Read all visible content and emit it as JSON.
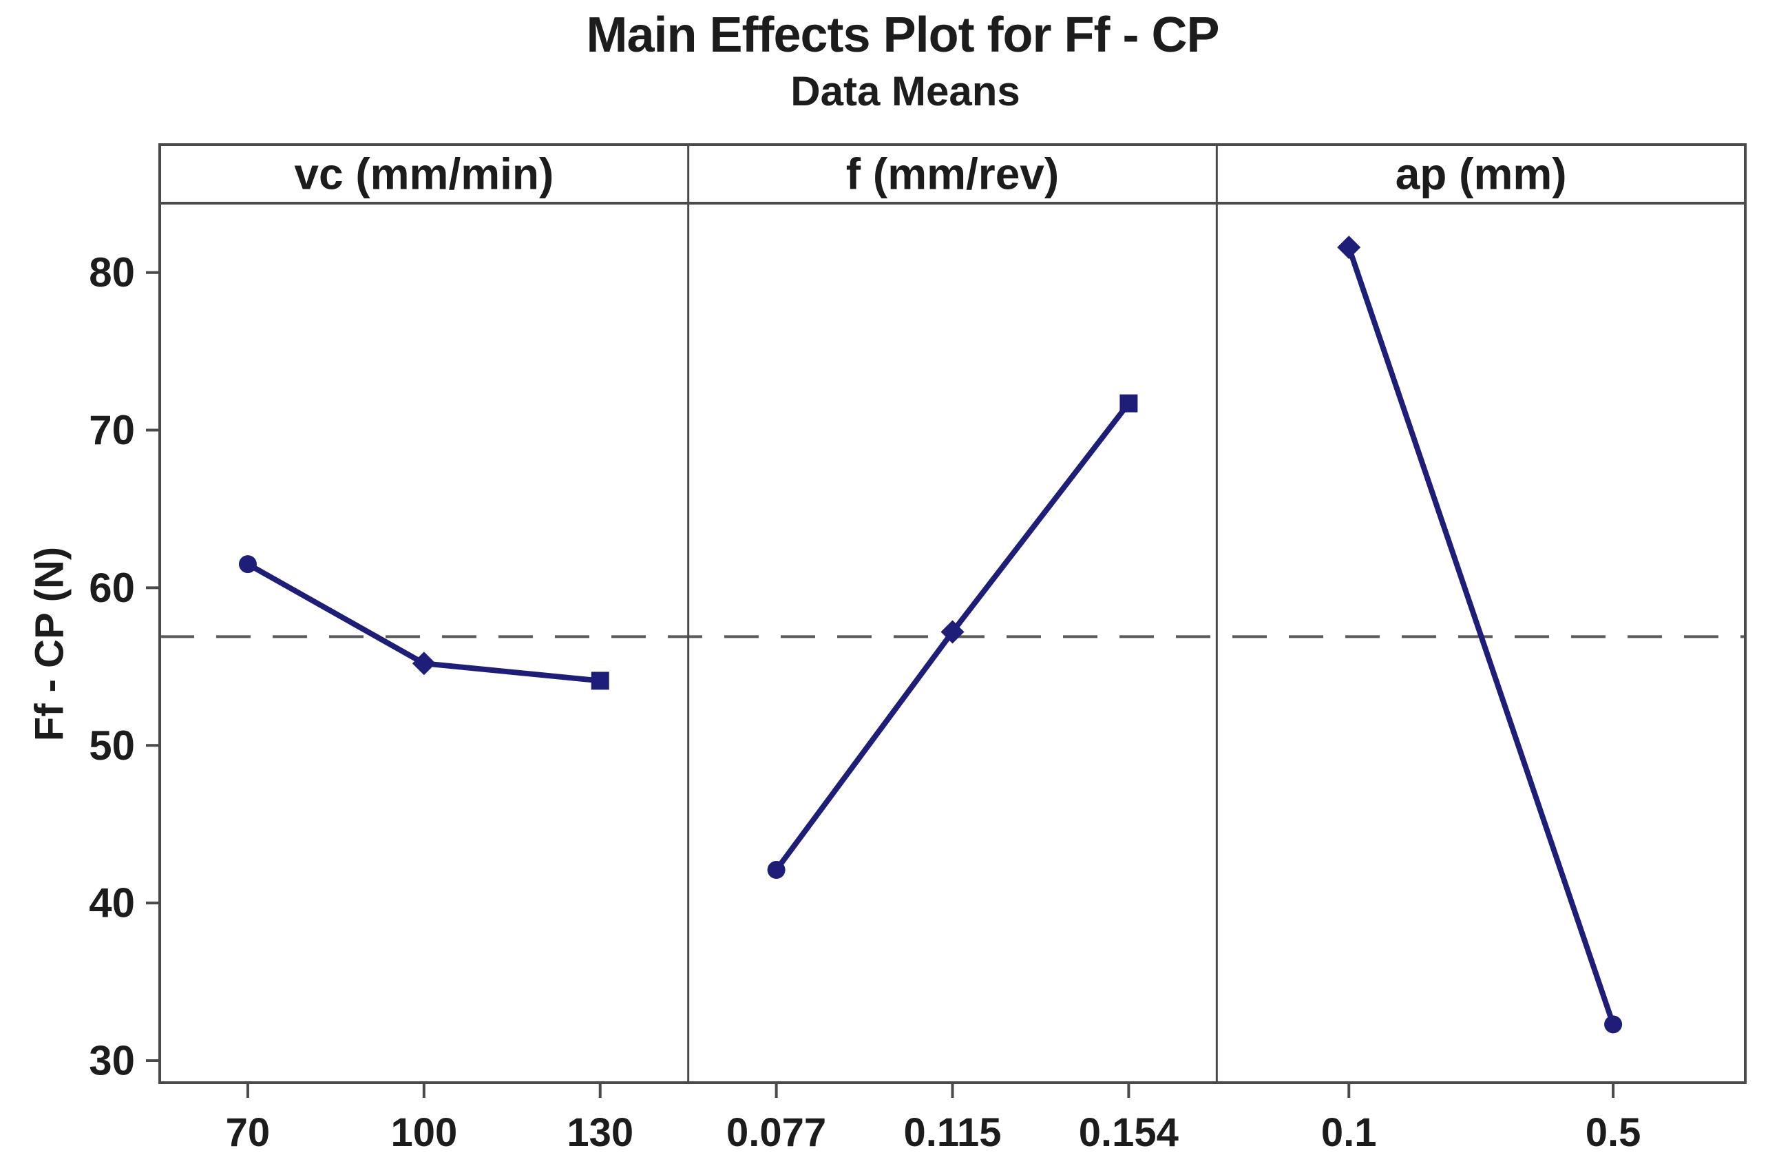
{
  "page": {
    "background": "#ffffff"
  },
  "chart_data": {
    "type": "line",
    "title": "Main Effects Plot for Ff - CP",
    "subtitle": "Data Means",
    "ylabel": "Ff - CP (N)",
    "ylim": [
      28.6,
      84.4
    ],
    "yticks": [
      30,
      40,
      50,
      60,
      70,
      80
    ],
    "grand_mean": 56.9,
    "grid": false,
    "legend": "none",
    "panels": [
      {
        "label": "vc (mm/min)",
        "categories": [
          "70",
          "100",
          "130"
        ],
        "values": [
          61.5,
          55.2,
          54.1
        ]
      },
      {
        "label": "f (mm/rev)",
        "categories": [
          "0.077",
          "0.115",
          "0.154"
        ],
        "values": [
          42.1,
          57.2,
          71.7
        ]
      },
      {
        "label": "ap (mm)",
        "categories": [
          "0.1",
          "0.5"
        ],
        "values": [
          81.6,
          32.3
        ]
      }
    ],
    "colors": {
      "series_line": "#1e1e78",
      "marker": "#1e1e78",
      "mean_line": "#5a5a5a",
      "axis": "#4a4a4a",
      "text": "#1c1c1c"
    }
  }
}
